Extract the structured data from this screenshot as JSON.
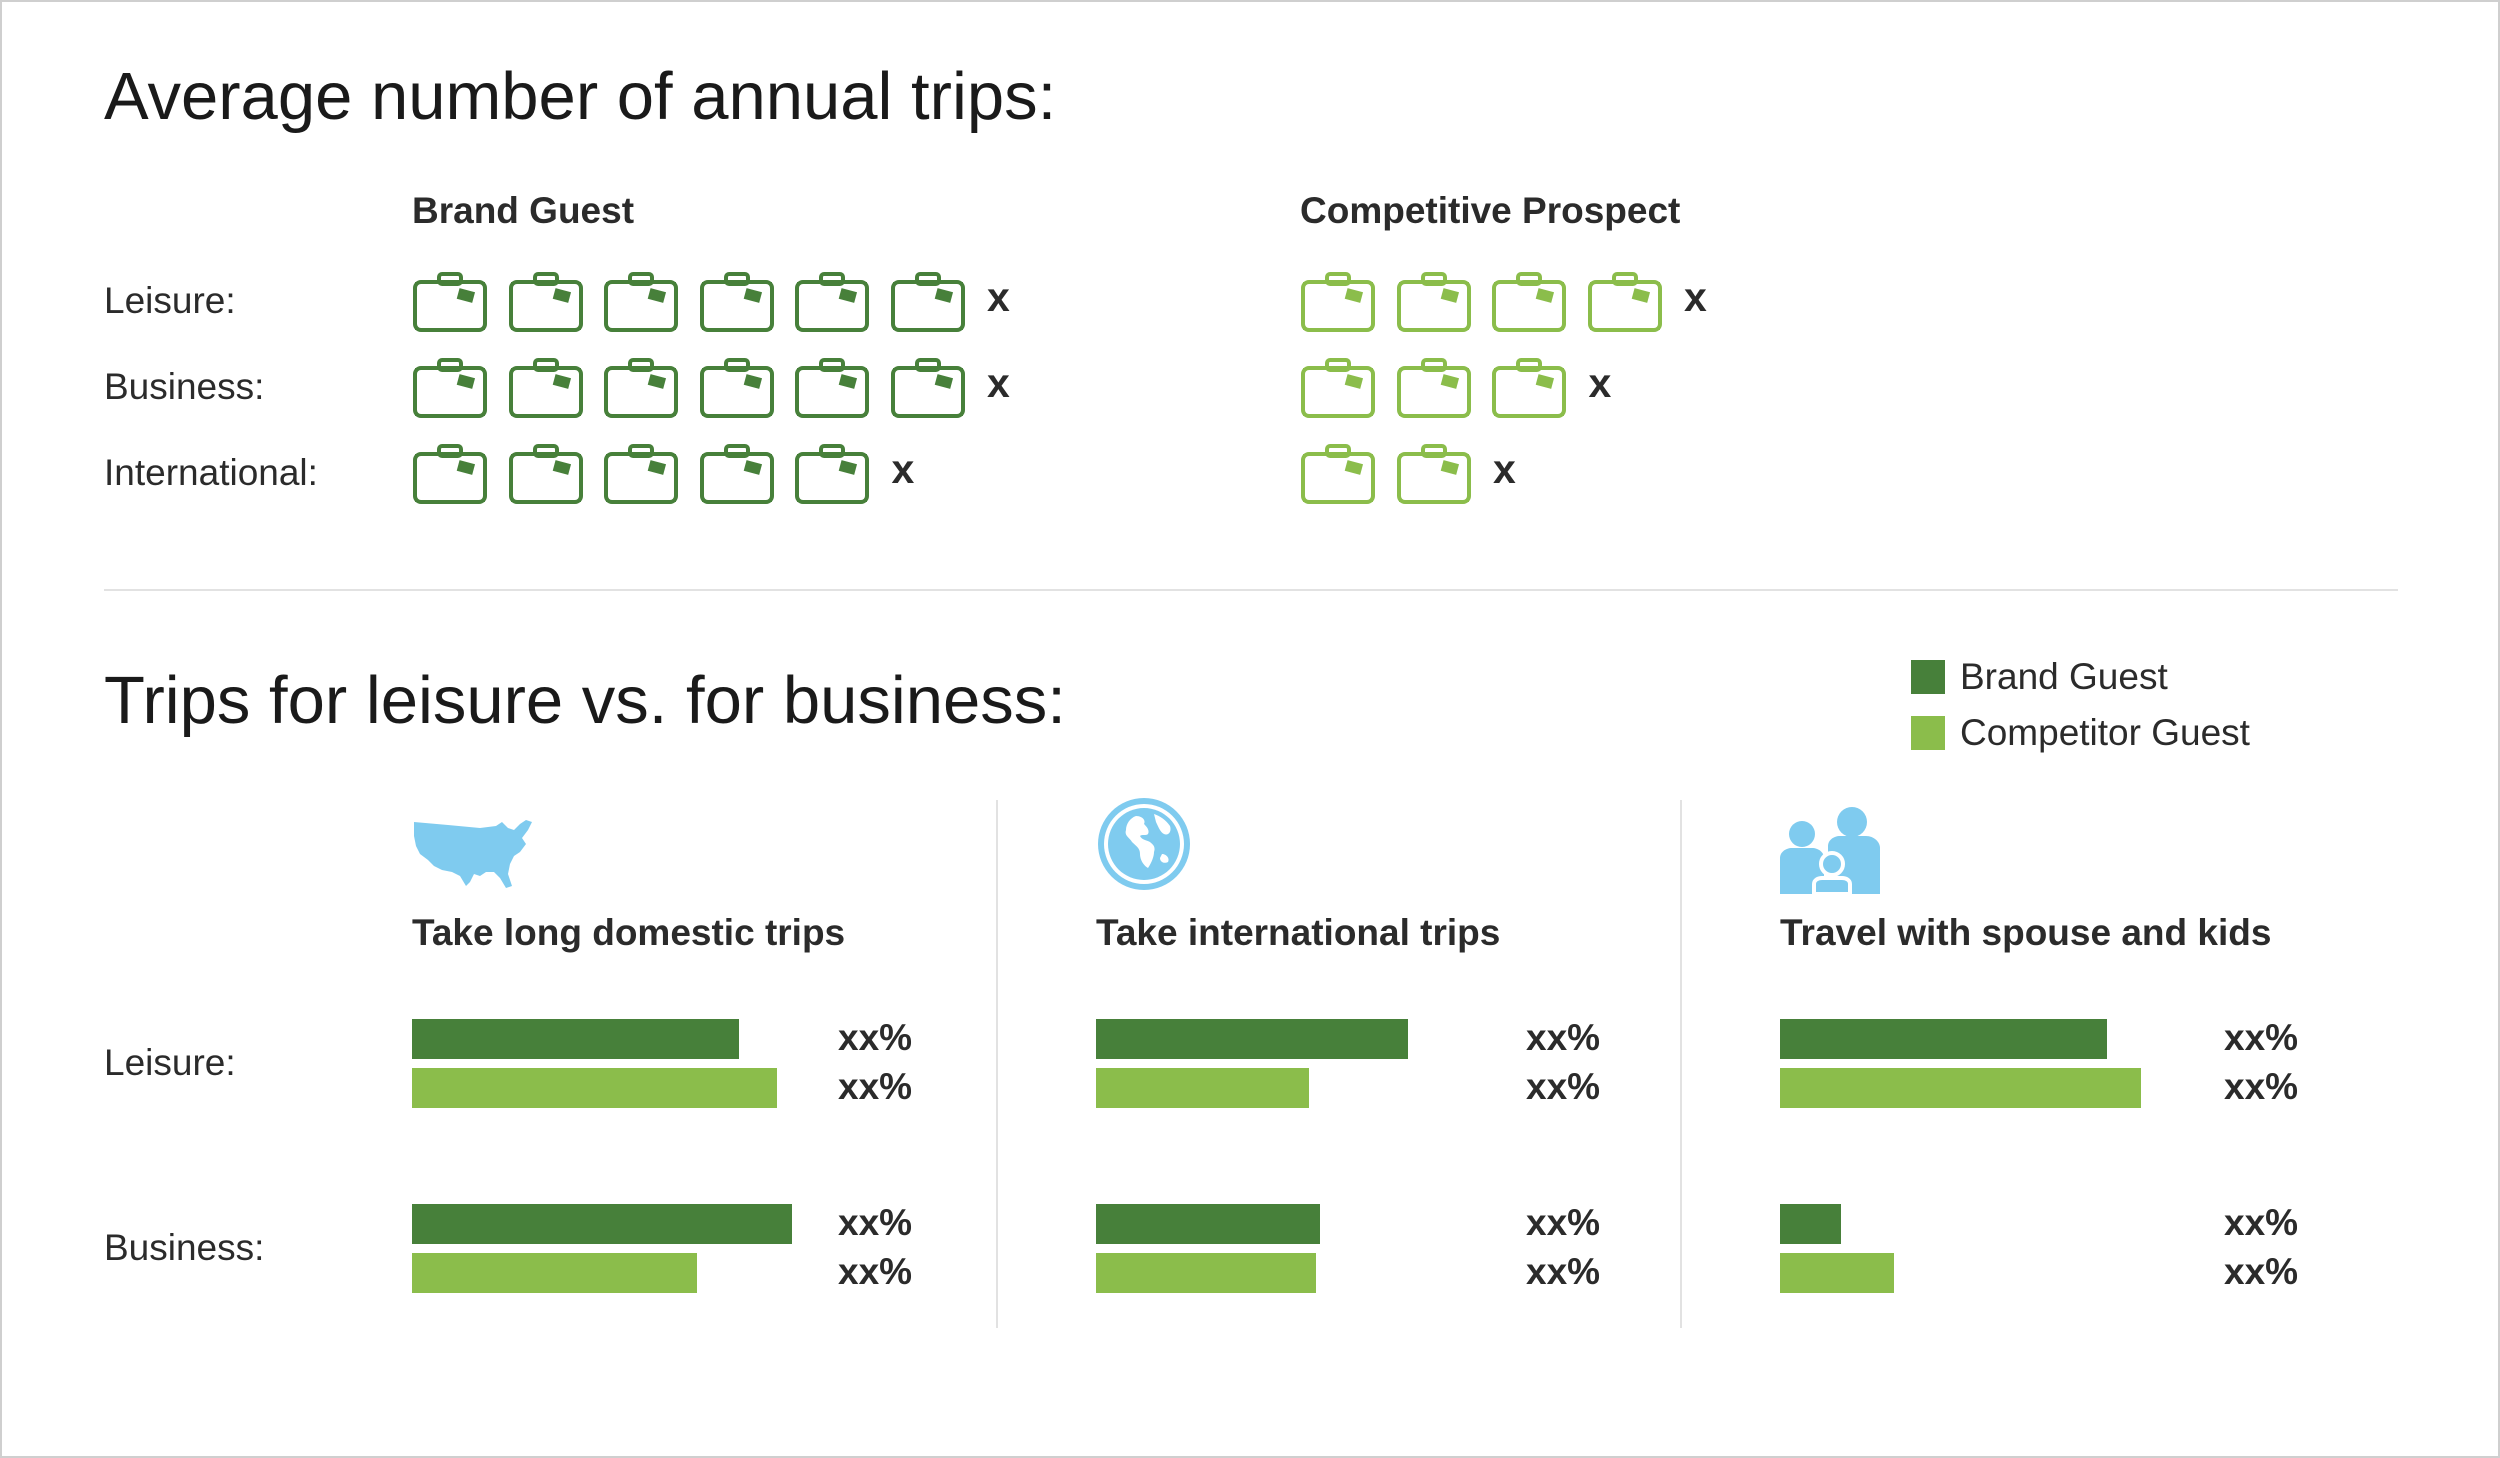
{
  "colors": {
    "brand": "#47803a",
    "competitor": "#8bbd4b",
    "icon_blue": "#7fcbef"
  },
  "section1": {
    "title": "Average number of annual trips:",
    "columns": [
      "Brand Guest",
      "Competitive Prospect"
    ],
    "rows": [
      {
        "label": "Leisure:",
        "brand_count": 6,
        "competitor_count": 4,
        "brand_mark": "x",
        "competitor_mark": "x"
      },
      {
        "label": "Business:",
        "brand_count": 6,
        "competitor_count": 3,
        "brand_mark": "x",
        "competitor_mark": "x"
      },
      {
        "label": "International:",
        "brand_count": 5,
        "competitor_count": 2,
        "brand_mark": "x",
        "competitor_mark": "x"
      }
    ],
    "icon": "suitcase-icon"
  },
  "section2": {
    "title": "Trips for leisure vs. for business:",
    "legend": [
      "Brand Guest",
      "Competitor Guest"
    ],
    "row_labels": [
      "Leisure:",
      "Business:"
    ]
  },
  "chart_data": [
    {
      "type": "bar",
      "title": "Take long domestic trips",
      "icon": "usa-map-icon",
      "categories": [
        "Leisure:",
        "Business:"
      ],
      "series": [
        {
          "name": "Brand Guest",
          "values": [
            0.86,
            1.0
          ],
          "labels": [
            "xx%",
            "xx%"
          ]
        },
        {
          "name": "Competitor Guest",
          "values": [
            0.96,
            0.75
          ],
          "labels": [
            "xx%",
            "xx%"
          ]
        }
      ]
    },
    {
      "type": "bar",
      "title": "Take international trips",
      "icon": "globe-icon",
      "categories": [
        "Leisure:",
        "Business:"
      ],
      "series": [
        {
          "name": "Brand Guest",
          "values": [
            0.82,
            0.59
          ],
          "labels": [
            "xx%",
            "xx%"
          ]
        },
        {
          "name": "Competitor Guest",
          "values": [
            0.56,
            0.58
          ],
          "labels": [
            "xx%",
            "xx%"
          ]
        }
      ]
    },
    {
      "type": "bar",
      "title": "Travel with spouse and kids",
      "icon": "family-icon",
      "categories": [
        "Leisure:",
        "Business:"
      ],
      "series": [
        {
          "name": "Brand Guest",
          "values": [
            0.86,
            0.16
          ],
          "labels": [
            "xx%",
            "xx%"
          ]
        },
        {
          "name": "Competitor Guest",
          "values": [
            0.95,
            0.3
          ],
          "labels": [
            "xx%",
            "xx%"
          ]
        }
      ]
    }
  ]
}
